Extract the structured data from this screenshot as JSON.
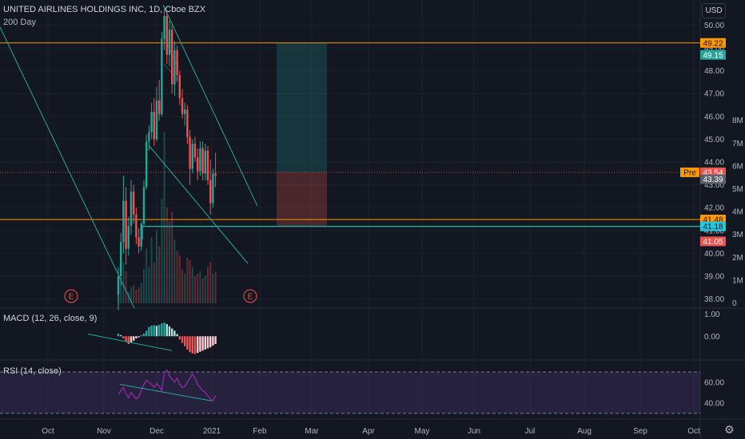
{
  "header": {
    "title": "UNITED AIRLINES HOLDINGS INC, 1D, Cboe BZX",
    "ma_label": "200 Day"
  },
  "currency_button": "USD",
  "colors": {
    "background": "#131722",
    "up": "#26a69a",
    "down": "#ef5350",
    "orange_line": "#ff9800",
    "trend_line": "#26a69a",
    "rsi_band": "#7e57c2",
    "rsi_line": "#9c27b0"
  },
  "chart_data": [
    {
      "type": "candlestick",
      "title": "UNITED AIRLINES HOLDINGS INC, 1D, Cboe BZX",
      "x_ticks": [
        "Oct",
        "Nov",
        "Dec",
        "2021",
        "Feb",
        "Mar",
        "Apr",
        "May",
        "Jun",
        "Jul",
        "Aug",
        "Sep",
        "Oct"
      ],
      "y_ticks": [
        "38.00",
        "39.00",
        "40.00",
        "41.00",
        "42.00",
        "43.00",
        "44.00",
        "45.00",
        "46.00",
        "47.00",
        "48.00",
        "49.00",
        "50.00"
      ],
      "ylim": [
        37.6,
        51.1
      ],
      "volume_ticks": [
        "0",
        "1M",
        "2M",
        "3M",
        "4M",
        "5M",
        "6M",
        "7M",
        "8M"
      ],
      "horizontal_levels": [
        49.22,
        41.48,
        41.18
      ],
      "price_badges": [
        {
          "label": "49.22",
          "kind": "orange"
        },
        {
          "label": "49.15",
          "kind": "green"
        },
        {
          "label": "43.55",
          "kind": "pre",
          "prefix": "Pre"
        },
        {
          "label": "43.54",
          "kind": "red"
        },
        {
          "label": "43.39",
          "kind": "gray"
        },
        {
          "label": "41.48",
          "kind": "orange"
        },
        {
          "label": "41.18",
          "kind": "teal"
        },
        {
          "label": "41.05",
          "kind": "red"
        }
      ],
      "price_badge_values": [
        49.22,
        49.15,
        43.55,
        43.54,
        43.39,
        41.48,
        41.18,
        41.05
      ],
      "position": {
        "entry": 43.55,
        "target": 49.22,
        "stop": 41.18
      },
      "earnings_markers": [
        "E",
        "E"
      ],
      "candles": [
        {
          "o": 38.2,
          "h": 39.4,
          "l": 37.5,
          "c": 39.0
        },
        {
          "o": 39.0,
          "h": 40.9,
          "l": 38.6,
          "c": 40.5
        },
        {
          "o": 40.5,
          "h": 43.4,
          "l": 40.0,
          "c": 42.3
        },
        {
          "o": 42.3,
          "h": 42.9,
          "l": 39.5,
          "c": 40.2
        },
        {
          "o": 40.2,
          "h": 41.6,
          "l": 39.9,
          "c": 41.2
        },
        {
          "o": 41.2,
          "h": 43.2,
          "l": 40.8,
          "c": 42.7
        },
        {
          "o": 42.7,
          "h": 43.0,
          "l": 41.3,
          "c": 41.7
        },
        {
          "o": 41.7,
          "h": 42.0,
          "l": 40.4,
          "c": 40.7
        },
        {
          "o": 40.7,
          "h": 41.1,
          "l": 40.0,
          "c": 40.3
        },
        {
          "o": 40.3,
          "h": 41.4,
          "l": 40.1,
          "c": 41.3
        },
        {
          "o": 41.3,
          "h": 43.2,
          "l": 41.2,
          "c": 42.9
        },
        {
          "o": 42.9,
          "h": 45.2,
          "l": 42.8,
          "c": 44.9
        },
        {
          "o": 44.9,
          "h": 45.6,
          "l": 44.5,
          "c": 45.3
        },
        {
          "o": 45.3,
          "h": 46.6,
          "l": 45.0,
          "c": 46.2
        },
        {
          "o": 46.2,
          "h": 46.8,
          "l": 44.7,
          "c": 45.0
        },
        {
          "o": 45.0,
          "h": 47.3,
          "l": 44.9,
          "c": 46.7
        },
        {
          "o": 46.7,
          "h": 47.6,
          "l": 45.8,
          "c": 46.1
        },
        {
          "o": 46.1,
          "h": 49.7,
          "l": 46.0,
          "c": 49.4
        },
        {
          "o": 49.4,
          "h": 50.8,
          "l": 48.9,
          "c": 50.4
        },
        {
          "o": 50.4,
          "h": 50.6,
          "l": 48.3,
          "c": 48.7
        },
        {
          "o": 48.7,
          "h": 50.2,
          "l": 48.2,
          "c": 49.8
        },
        {
          "o": 49.8,
          "h": 50.0,
          "l": 47.0,
          "c": 47.4
        },
        {
          "o": 47.4,
          "h": 49.3,
          "l": 46.9,
          "c": 48.9
        },
        {
          "o": 48.9,
          "h": 49.1,
          "l": 47.5,
          "c": 47.8
        },
        {
          "o": 47.8,
          "h": 48.0,
          "l": 46.5,
          "c": 46.8
        },
        {
          "o": 46.8,
          "h": 47.2,
          "l": 45.9,
          "c": 46.1
        },
        {
          "o": 46.1,
          "h": 46.6,
          "l": 45.6,
          "c": 46.3
        },
        {
          "o": 46.3,
          "h": 46.5,
          "l": 44.8,
          "c": 45.1
        },
        {
          "o": 45.1,
          "h": 45.4,
          "l": 43.0,
          "c": 43.7
        },
        {
          "o": 43.7,
          "h": 45.0,
          "l": 43.5,
          "c": 44.8
        },
        {
          "o": 44.8,
          "h": 45.1,
          "l": 44.0,
          "c": 44.2
        },
        {
          "o": 44.2,
          "h": 44.6,
          "l": 43.2,
          "c": 43.6
        },
        {
          "o": 43.6,
          "h": 44.9,
          "l": 43.4,
          "c": 44.6
        },
        {
          "o": 44.6,
          "h": 44.9,
          "l": 43.2,
          "c": 43.5
        },
        {
          "o": 43.5,
          "h": 44.8,
          "l": 43.2,
          "c": 44.5
        },
        {
          "o": 44.5,
          "h": 44.7,
          "l": 43.0,
          "c": 43.2
        },
        {
          "o": 43.2,
          "h": 44.1,
          "l": 41.7,
          "c": 42.2
        },
        {
          "o": 42.2,
          "h": 43.7,
          "l": 42.0,
          "c": 43.5
        },
        {
          "o": 43.5,
          "h": 44.4,
          "l": 42.9,
          "c": 43.39
        }
      ],
      "ma_line": [
        [
          48.2,
          49.5
        ],
        [
          47.6,
          48.3
        ]
      ],
      "volume": [
        0.6,
        0.9,
        1.8,
        1.4,
        0.5,
        0.7,
        0.8,
        0.6,
        0.7,
        0.9,
        1.5,
        2.4,
        1.6,
        2.9,
        1.8,
        3.2,
        2.5,
        4.6,
        7.5,
        4.2,
        3.6,
        4.0,
        2.8,
        2.3,
        2.1,
        1.5,
        1.3,
        2.0,
        1.9,
        1.6,
        1.2,
        1.3,
        1.4,
        1.1,
        1.2,
        1.6,
        1.8,
        1.3,
        1.4
      ]
    },
    {
      "type": "bar",
      "title": "MACD (12, 26, close, 9)",
      "y_ticks": [
        "1.00",
        "0.00"
      ],
      "ylim": [
        -1.0,
        1.2
      ],
      "histogram": [
        0.12,
        0.05,
        -0.1,
        -0.25,
        -0.35,
        -0.3,
        -0.2,
        -0.1,
        -0.05,
        0.05,
        0.12,
        0.25,
        0.42,
        0.48,
        0.5,
        0.47,
        0.52,
        0.58,
        0.62,
        0.55,
        0.45,
        0.35,
        0.25,
        0.1,
        -0.15,
        -0.3,
        -0.45,
        -0.6,
        -0.72,
        -0.78,
        -0.8,
        -0.75,
        -0.7,
        -0.65,
        -0.6,
        -0.55,
        -0.5,
        -0.42,
        -0.35
      ]
    },
    {
      "type": "line",
      "title": "RSI (14, close)",
      "y_ticks": [
        "60.00",
        "40.00"
      ],
      "ylim": [
        26,
        80
      ],
      "band": [
        30,
        70
      ],
      "values": [
        48,
        52,
        55,
        49,
        45,
        50,
        47,
        44,
        46,
        52,
        58,
        62,
        60,
        58,
        55,
        59,
        56,
        52,
        69,
        72,
        66,
        63,
        60,
        64,
        58,
        55,
        56,
        60,
        64,
        68,
        64,
        58,
        55,
        52,
        50,
        47,
        44,
        42,
        47
      ]
    }
  ]
}
